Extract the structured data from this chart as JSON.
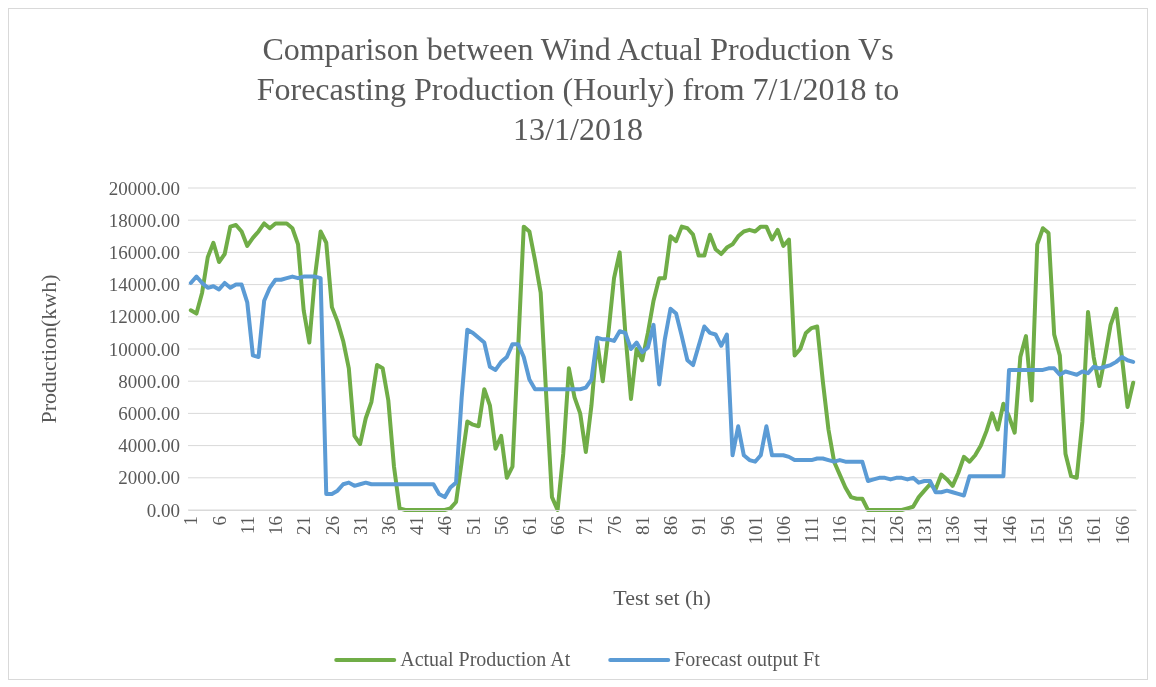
{
  "chart_data": {
    "type": "line",
    "title": "Comparison between Wind  Actual Production Vs Forecasting Production (Hourly) from 7/1/2018 to 13/1/2018",
    "xlabel": "Test set (h)",
    "ylabel": "Production(kwh)",
    "categories": [
      "1",
      null,
      null,
      null,
      null,
      "6",
      null,
      null,
      null,
      null,
      "11",
      null,
      null,
      null,
      null,
      "16",
      null,
      null,
      null,
      null,
      "21",
      null,
      null,
      null,
      null,
      "26",
      null,
      null,
      null,
      null,
      "31",
      null,
      null,
      null,
      null,
      "36",
      null,
      null,
      null,
      null,
      "41",
      null,
      null,
      null,
      null,
      "46",
      null,
      null,
      null,
      null,
      "51",
      null,
      null,
      null,
      null,
      "56",
      null,
      null,
      null,
      null,
      "61",
      null,
      null,
      null,
      null,
      "66",
      null,
      null,
      null,
      null,
      "71",
      null,
      null,
      null,
      null,
      "76",
      null,
      null,
      null,
      null,
      "81",
      null,
      null,
      null,
      null,
      "86",
      null,
      null,
      null,
      null,
      "91",
      null,
      null,
      null,
      null,
      "96",
      null,
      null,
      null,
      null,
      "101",
      null,
      null,
      null,
      null,
      "106",
      null,
      null,
      null,
      null,
      "111",
      null,
      null,
      null,
      null,
      "116",
      null,
      null,
      null,
      null,
      "121",
      null,
      null,
      null,
      null,
      "126",
      null,
      null,
      null,
      null,
      "131",
      null,
      null,
      null,
      null,
      "136",
      null,
      null,
      null,
      null,
      "141",
      null,
      null,
      null,
      null,
      "146",
      null,
      null,
      null,
      null,
      "151",
      null,
      null,
      null,
      null,
      "156",
      null,
      null,
      null,
      null,
      "161",
      null,
      null,
      null,
      null,
      "166",
      null,
      null
    ],
    "series": [
      {
        "name": "Actual Production At",
        "color": "#70ad47",
        "values": [
          12400,
          12200,
          13500,
          15700,
          16600,
          15400,
          15900,
          17600,
          17700,
          17300,
          16400,
          16900,
          17300,
          17800,
          17500,
          17800,
          17800,
          17800,
          17500,
          16500,
          12400,
          10400,
          14500,
          17300,
          16600,
          12600,
          11700,
          10500,
          8800,
          4600,
          4100,
          5700,
          6700,
          9000,
          8800,
          6800,
          2700,
          100,
          0,
          0,
          0,
          0,
          0,
          0,
          0,
          0,
          100,
          500,
          3000,
          5500,
          5300,
          5200,
          7500,
          6500,
          3800,
          4600,
          2000,
          2700,
          10000,
          17600,
          17300,
          15500,
          13500,
          7000,
          800,
          0,
          3500,
          8800,
          7000,
          6000,
          3600,
          6500,
          10500,
          8000,
          11000,
          14400,
          16000,
          11000,
          6900,
          10000,
          9300,
          11000,
          13000,
          14400,
          14400,
          17000,
          16700,
          17600,
          17500,
          17100,
          15800,
          15800,
          17100,
          16200,
          15900,
          16300,
          16500,
          17000,
          17300,
          17400,
          17300,
          17600,
          17600,
          16800,
          17400,
          16400,
          16800,
          9600,
          10000,
          11000,
          11300,
          11400,
          8000,
          5000,
          3000,
          2200,
          1400,
          800,
          700,
          700,
          0,
          0,
          0,
          0,
          0,
          0,
          0,
          100,
          200,
          800,
          1200,
          1600,
          1300,
          2200,
          1900,
          1500,
          2300,
          3300,
          3000,
          3400,
          4000,
          4900,
          6000,
          5000,
          6600,
          5800,
          4800,
          9500,
          10800,
          6800,
          16500,
          17500,
          17200,
          10900,
          9600,
          3500,
          2100,
          2000,
          5500,
          12300,
          9500,
          7700,
          9500,
          11500,
          12500,
          9500,
          6400,
          7900
        ]
      },
      {
        "name": "Forecast output Ft",
        "color": "#5b9bd5",
        "values": [
          14100,
          14500,
          14100,
          13800,
          13900,
          13700,
          14100,
          13800,
          14000,
          14000,
          12900,
          9600,
          9500,
          13000,
          13800,
          14300,
          14300,
          14400,
          14500,
          14400,
          14500,
          14500,
          14500,
          14400,
          1000,
          1000,
          1200,
          1600,
          1700,
          1500,
          1600,
          1700,
          1600,
          1600,
          1600,
          1600,
          1600,
          1600,
          1600,
          1600,
          1600,
          1600,
          1600,
          1600,
          1000,
          800,
          1400,
          1700,
          7000,
          11200,
          11000,
          10700,
          10400,
          8900,
          8700,
          9200,
          9500,
          10300,
          10300,
          9500,
          8100,
          7500,
          7500,
          7500,
          7500,
          7500,
          7500,
          7500,
          7500,
          7500,
          7600,
          8100,
          10700,
          10600,
          10600,
          10500,
          11100,
          11000,
          10000,
          10400,
          9800,
          10100,
          11500,
          7800,
          10600,
          12500,
          12200,
          10800,
          9300,
          9000,
          10200,
          11400,
          11000,
          10900,
          10200,
          10900,
          3400,
          5200,
          3400,
          3100,
          3000,
          3400,
          5200,
          3400,
          3400,
          3400,
          3300,
          3100,
          3100,
          3100,
          3100,
          3200,
          3200,
          3100,
          3000,
          3100,
          3000,
          3000,
          3000,
          3000,
          1800,
          1900,
          2000,
          2000,
          1900,
          2000,
          2000,
          1900,
          2000,
          1700,
          1800,
          1800,
          1100,
          1100,
          1200,
          1100,
          1000,
          900,
          2100,
          2100,
          2100,
          2100,
          2100,
          2100,
          2100,
          8700,
          8700,
          8700,
          8700,
          8700,
          8700,
          8700,
          8800,
          8800,
          8400,
          8600,
          8500,
          8400,
          8600,
          8500,
          8900,
          8800,
          8900,
          9000,
          9200,
          9500,
          9300,
          9200
        ]
      }
    ],
    "ylim": [
      0,
      20000
    ],
    "yticks": [
      {
        "value": 0,
        "label": "0.00"
      },
      {
        "value": 2000,
        "label": "2000.00"
      },
      {
        "value": 4000,
        "label": "4000.00"
      },
      {
        "value": 6000,
        "label": "6000.00"
      },
      {
        "value": 8000,
        "label": "8000.00"
      },
      {
        "value": 10000,
        "label": "10000.00"
      },
      {
        "value": 12000,
        "label": "12000.00"
      },
      {
        "value": 14000,
        "label": "14000.00"
      },
      {
        "value": 16000,
        "label": "16000.00"
      },
      {
        "value": 18000,
        "label": "18000.00"
      },
      {
        "value": 20000,
        "label": "20000.00"
      }
    ],
    "grid": "y",
    "legend": "bottom",
    "marker": "none",
    "line_style": "solid"
  }
}
